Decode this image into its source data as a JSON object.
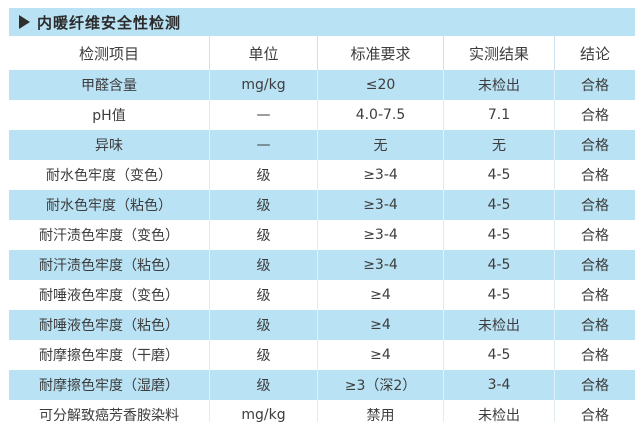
{
  "title": {
    "arrow_icon": "play-triangle",
    "text": "内暖纤维安全性检测"
  },
  "table": {
    "columns": [
      "检测项目",
      "单位",
      "标准要求",
      "实测结果",
      "结论"
    ],
    "rows": [
      [
        "甲醛含量",
        "mg/kg",
        "≤20",
        "未检出",
        "合格"
      ],
      [
        "pH值",
        "—",
        "4.0-7.5",
        "7.1",
        "合格"
      ],
      [
        "异味",
        "—",
        "无",
        "无",
        "合格"
      ],
      [
        "耐水色牢度（变色）",
        "级",
        "≥3-4",
        "4-5",
        "合格"
      ],
      [
        "耐水色牢度（粘色）",
        "级",
        "≥3-4",
        "4-5",
        "合格"
      ],
      [
        "耐汗渍色牢度（变色）",
        "级",
        "≥3-4",
        "4-5",
        "合格"
      ],
      [
        "耐汗渍色牢度（粘色）",
        "级",
        "≥3-4",
        "4-5",
        "合格"
      ],
      [
        "耐唾液色牢度（变色）",
        "级",
        "≥4",
        "4-5",
        "合格"
      ],
      [
        "耐唾液色牢度（粘色）",
        "级",
        "≥4",
        "未检出",
        "合格"
      ],
      [
        "耐摩擦色牢度（干磨）",
        "级",
        "≥4",
        "4-5",
        "合格"
      ],
      [
        "耐摩擦色牢度（湿磨）",
        "级",
        "≥3（深2）",
        "3-4",
        "合格"
      ],
      [
        "可分解致癌芳香胺染料",
        "mg/kg",
        "禁用",
        "未检出",
        "合格"
      ]
    ]
  },
  "colors": {
    "accent_blue": "#b9e2f4",
    "row_white": "#ffffff",
    "text_dark": "#3d3d3d"
  }
}
